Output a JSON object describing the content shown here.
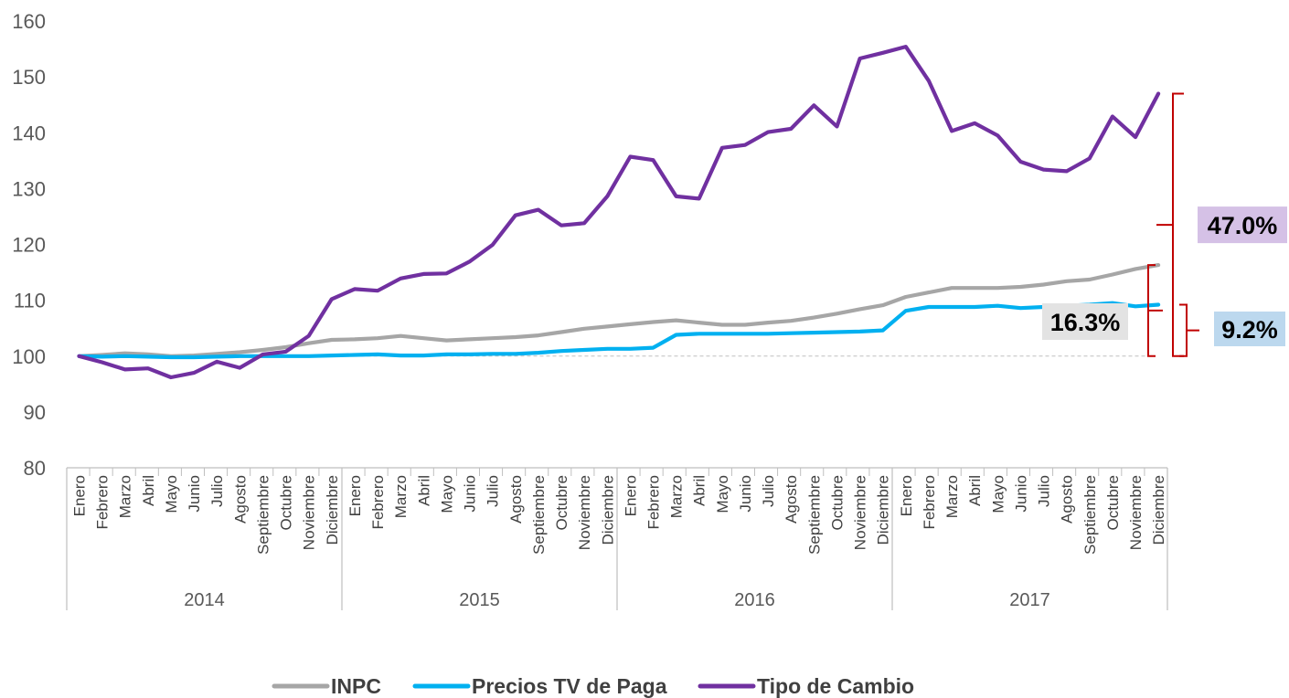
{
  "chart_data": {
    "type": "line",
    "ylim": [
      80,
      160
    ],
    "yticks": [
      80,
      90,
      100,
      110,
      120,
      130,
      140,
      150,
      160
    ],
    "months": [
      "Enero",
      "Febrero",
      "Marzo",
      "Abril",
      "Mayo",
      "Junio",
      "Julio",
      "Agosto",
      "Septiembre",
      "Octubre",
      "Noviembre",
      "Diciembre"
    ],
    "years": [
      "2014",
      "2015",
      "2016",
      "2017"
    ],
    "baseline": 100,
    "series": [
      {
        "name": "INPC",
        "color": "#a6a6a6",
        "values": [
          100,
          100.2,
          100.5,
          100.3,
          100,
          100.1,
          100.4,
          100.7,
          101.1,
          101.6,
          102.3,
          102.9,
          103.0,
          103.2,
          103.6,
          103.2,
          102.8,
          103.0,
          103.2,
          103.4,
          103.7,
          104.3,
          104.9,
          105.3,
          105.7,
          106.1,
          106.4,
          106.0,
          105.6,
          105.6,
          106.0,
          106.3,
          106.9,
          107.6,
          108.4,
          109.1,
          110.6,
          111.4,
          112.2,
          112.2,
          112.2,
          112.4,
          112.8,
          113.4,
          113.7,
          114.6,
          115.6,
          116.3
        ]
      },
      {
        "name": "Precios TV de Paga",
        "color": "#00b0f0",
        "values": [
          100,
          99.9,
          100,
          99.9,
          99.8,
          99.8,
          99.9,
          100.0,
          100.0,
          100.0,
          100.0,
          100.1,
          100.2,
          100.3,
          100.1,
          100.1,
          100.3,
          100.3,
          100.4,
          100.4,
          100.6,
          100.9,
          101.1,
          101.3,
          101.3,
          101.5,
          103.8,
          104.0,
          104.0,
          104.0,
          104.0,
          104.1,
          104.2,
          104.3,
          104.4,
          104.6,
          108.1,
          108.8,
          108.8,
          108.8,
          109.0,
          108.6,
          108.8,
          109.0,
          109.2,
          109.5,
          108.9,
          109.2
        ]
      },
      {
        "name": "Tipo de Cambio",
        "color": "#7030a0",
        "values": [
          100,
          98.9,
          97.6,
          97.8,
          96.2,
          97.0,
          99.0,
          97.9,
          100.3,
          100.8,
          103.6,
          110.2,
          112.0,
          111.7,
          113.9,
          114.7,
          114.8,
          116.9,
          119.9,
          125.2,
          126.2,
          123.4,
          123.8,
          128.6,
          135.7,
          135.1,
          128.6,
          128.2,
          137.3,
          137.8,
          140.1,
          140.7,
          144.9,
          141.1,
          153.3,
          154.3,
          155.4,
          149.3,
          140.3,
          141.7,
          139.5,
          134.8,
          133.4,
          133.1,
          135.4,
          142.9,
          139.2,
          147.0
        ]
      }
    ],
    "annotations": [
      {
        "label": "47.0%",
        "series": "Tipo de Cambio",
        "box_color": "#d5c1e6"
      },
      {
        "label": "16.3%",
        "series": "INPC",
        "box_color": "#e3e3e3"
      },
      {
        "label": "9.2%",
        "series": "Precios TV de Paga",
        "box_color": "#bcd8ee"
      }
    ],
    "bracket_color": "#c00000",
    "legend_position": "bottom"
  }
}
